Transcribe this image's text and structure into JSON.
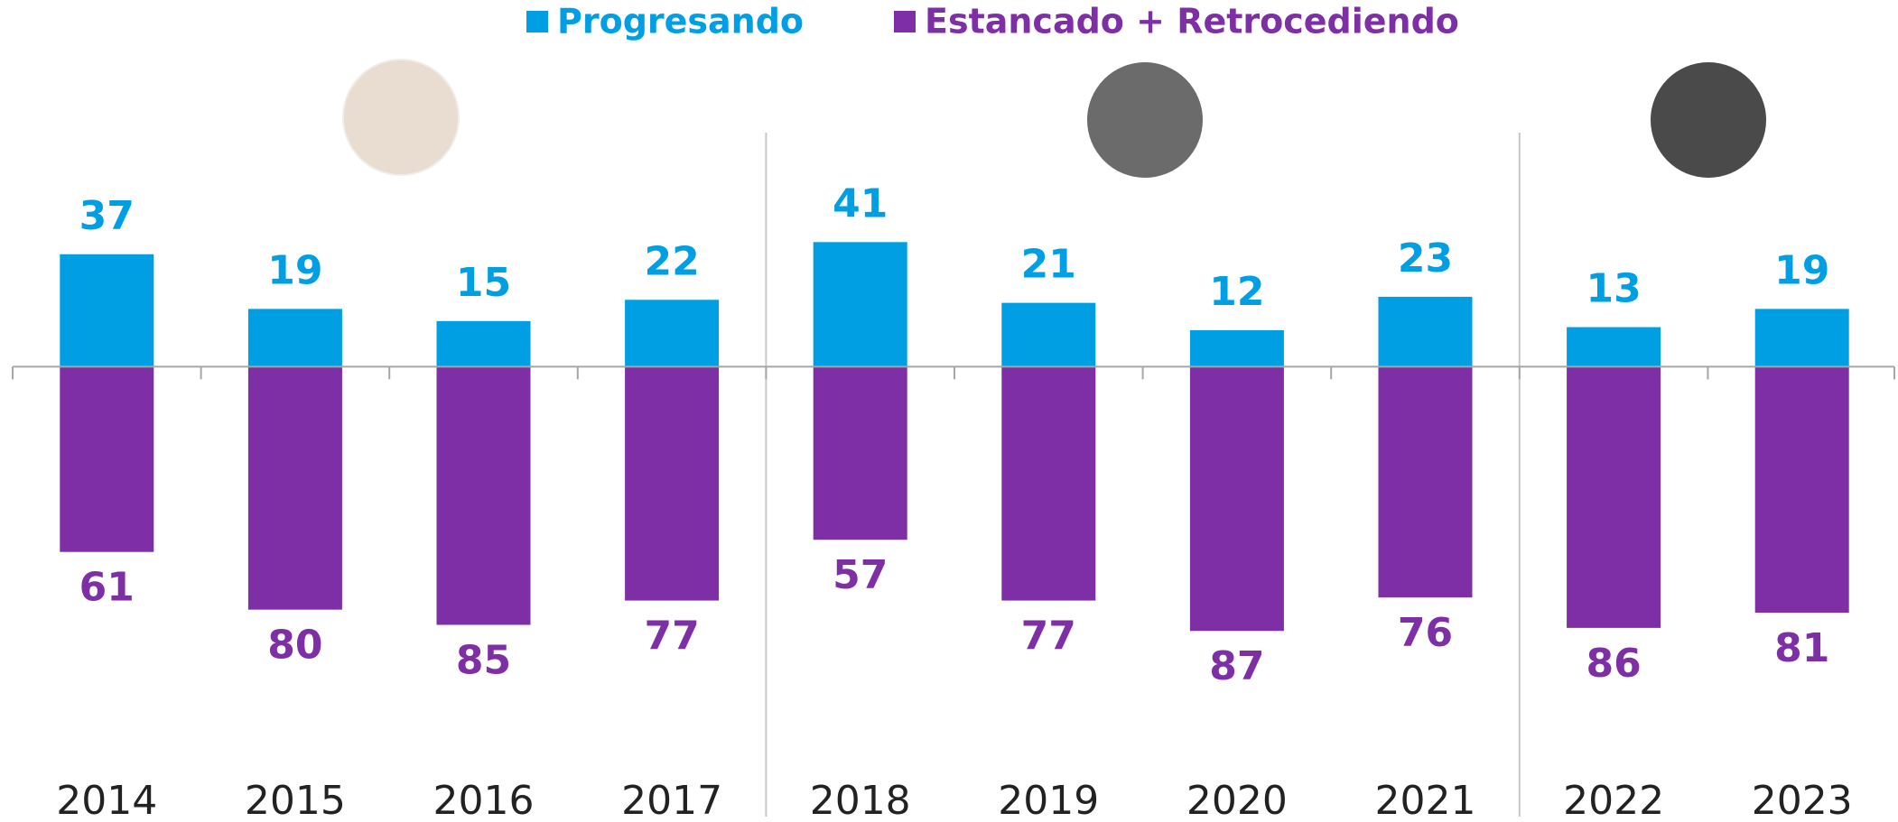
{
  "chart_data": {
    "type": "diverging-bar",
    "categories": [
      "2014",
      "2015",
      "2016",
      "2017",
      "2018",
      "2019",
      "2020",
      "2021",
      "2022",
      "2023"
    ],
    "series": [
      {
        "name": "Progresando",
        "color": "#009fe3",
        "values": [
          37,
          19,
          15,
          22,
          41,
          21,
          12,
          23,
          13,
          19
        ]
      },
      {
        "name": "Estancado + Retrocediendo",
        "color": "#7e2fa6",
        "values": [
          -61,
          -80,
          -85,
          -77,
          -57,
          -77,
          -87,
          -76,
          -86,
          -81
        ],
        "value_labels": [
          "61",
          "80",
          "85",
          "77",
          "57",
          "77",
          "87",
          "76",
          "86",
          "81"
        ]
      }
    ],
    "ylim": [
      -100,
      50
    ]
  }
}
